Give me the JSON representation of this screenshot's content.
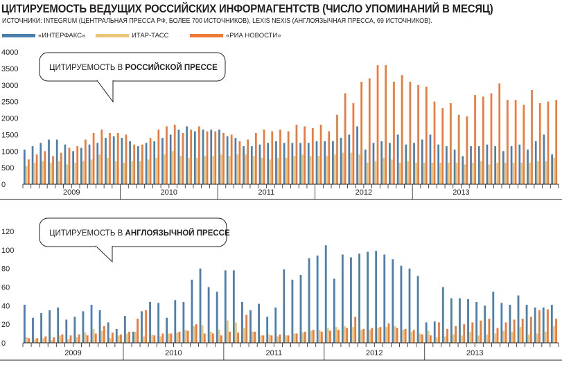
{
  "title": "ЦИТИРУЕМОСТЬ ВЕДУЩИХ РОССИЙСКИХ ИНФОРМАГЕНТСТВ (ЧИСЛО УПОМИНАНИЙ В МЕСЯЦ)",
  "subtitle": "ИСТОЧНИКИ: INTEGRUM (ЦЕНТРАЛЬНАЯ ПРЕССА РФ, БОЛЕЕ 700 ИСТОЧНИКОВ), LEXIS NEXIS (АНГЛОЯЗЫЧНАЯ ПРЕССА, 69 ИСТОЧНИКОВ).",
  "legend": [
    {
      "label": "«ИНТЕРФАКС»",
      "color": "#4a7fae"
    },
    {
      "label": "ИТАР-ТАСС",
      "color": "#e8c77a"
    },
    {
      "label": "«РИА НОВОСТИ»",
      "color": "#f0793a"
    }
  ],
  "chart_data": [
    {
      "type": "bar",
      "callout": {
        "prefix": "ЦИТИРУЕМОСТЬ В ",
        "bold": "РОССИЙСКОЙ ПРЕССЕ"
      },
      "ylim": [
        0,
        4000
      ],
      "yticks": [
        0,
        500,
        1000,
        1500,
        2000,
        2500,
        3000,
        3500,
        4000
      ],
      "year_labels": [
        "2009",
        "2010",
        "2011",
        "2012",
        "2013"
      ],
      "series": [
        {
          "name": "«ИНТЕРФАКС»",
          "color": "#4a7fae",
          "values": [
            1050,
            1150,
            1250,
            1350,
            1350,
            1200,
            1000,
            1100,
            1200,
            1250,
            1400,
            1450,
            1400,
            1300,
            1150,
            1250,
            1300,
            1400,
            1500,
            1650,
            1750,
            1600,
            1650,
            1650,
            1650,
            1450,
            1400,
            1150,
            1150,
            1200,
            1250,
            1300,
            1250,
            1250,
            1250,
            1250,
            1300,
            1300,
            1300,
            1400,
            1500,
            1750,
            1050,
            1250,
            1300,
            1250,
            1500,
            1200,
            1250,
            1350,
            1500,
            1200,
            1150,
            1050,
            850,
            1150,
            1150,
            1200,
            1150,
            1000,
            1150,
            1200,
            1050,
            1300,
            1500,
            900
          ]
        },
        {
          "name": "ИТАР-ТАСС",
          "color": "#e8c77a",
          "values": [
            550,
            650,
            700,
            650,
            700,
            600,
            650,
            700,
            750,
            900,
            800,
            700,
            650,
            700,
            700,
            750,
            800,
            900,
            1000,
            850,
            800,
            800,
            850,
            850,
            900,
            850,
            900,
            900,
            850,
            800,
            750,
            800,
            800,
            850,
            900,
            850,
            850,
            850,
            900,
            950,
            950,
            900,
            650,
            700,
            800,
            750,
            650,
            700,
            650,
            650,
            650,
            650,
            650,
            650,
            600,
            650,
            700,
            600,
            650,
            650,
            650,
            650,
            650,
            700,
            700,
            800
          ]
        },
        {
          "name": "«РИА НОВОСТИ»",
          "color": "#f0793a",
          "values": [
            750,
            900,
            1000,
            850,
            950,
            1100,
            1150,
            1350,
            1550,
            1650,
            1550,
            1550,
            1500,
            1200,
            1200,
            1400,
            1650,
            1750,
            1800,
            1550,
            1650,
            1750,
            1600,
            1600,
            1550,
            1500,
            1300,
            1350,
            1550,
            1650,
            1600,
            1650,
            1600,
            1800,
            1750,
            1700,
            1800,
            1600,
            2100,
            2750,
            2450,
            3100,
            3200,
            3600,
            3600,
            3100,
            3300,
            3100,
            3000,
            2950,
            2500,
            2300,
            2450,
            2100,
            2050,
            2700,
            2650,
            2750,
            3050,
            2550,
            2550,
            2400,
            2850,
            2450,
            2500,
            2550
          ]
        }
      ]
    },
    {
      "type": "bar",
      "callout": {
        "prefix": "ЦИТИРУЕМОСТЬ В ",
        "bold": "АНГЛОЯЗЫЧНОЙ ПРЕССЕ"
      },
      "ylim": [
        0,
        120
      ],
      "yticks": [
        0,
        20,
        40,
        60,
        80,
        100,
        120
      ],
      "year_labels": [
        "2009",
        "2010",
        "2011",
        "2012",
        "2013"
      ],
      "series": [
        {
          "name": "«ИНТЕРФАКС»",
          "color": "#4a7fae",
          "values": [
            41,
            27,
            32,
            35,
            38,
            25,
            28,
            34,
            41,
            35,
            22,
            15,
            29,
            12,
            34,
            44,
            43,
            27,
            46,
            44,
            68,
            80,
            60,
            55,
            78,
            78,
            44,
            35,
            42,
            28,
            38,
            79,
            68,
            73,
            91,
            94,
            105,
            69,
            95,
            92,
            96,
            98,
            99,
            95,
            90,
            83,
            80,
            72,
            22,
            23,
            60,
            48,
            48,
            47,
            44,
            40,
            55,
            43,
            41,
            51,
            41,
            38,
            38,
            41
          ]
        },
        {
          "name": "ИТАР-ТАСС",
          "color": "#e8c77a",
          "values": [
            6,
            4,
            5,
            3,
            8,
            4,
            6,
            11,
            15,
            13,
            5,
            8,
            10,
            12,
            7,
            9,
            7,
            10,
            11,
            14,
            18,
            19,
            12,
            14,
            24,
            22,
            16,
            12,
            8,
            9,
            7,
            8,
            10,
            11,
            13,
            14,
            16,
            17,
            18,
            17,
            14,
            14,
            16,
            17,
            18,
            14,
            12,
            10,
            13,
            6,
            7,
            9,
            8,
            12,
            8,
            9,
            10,
            13,
            12,
            17,
            9,
            10,
            12,
            18
          ]
        },
        {
          "name": "«РИА НОВОСТИ»",
          "color": "#f0793a",
          "values": [
            5,
            5,
            7,
            6,
            9,
            8,
            9,
            8,
            10,
            18,
            11,
            9,
            12,
            26,
            35,
            8,
            10,
            10,
            12,
            13,
            20,
            10,
            10,
            8,
            12,
            11,
            30,
            12,
            8,
            8,
            9,
            8,
            10,
            12,
            14,
            12,
            13,
            14,
            16,
            28,
            15,
            16,
            17,
            21,
            16,
            15,
            14,
            9,
            8,
            22,
            15,
            18,
            20,
            22,
            24,
            26,
            16,
            22,
            25,
            26,
            28,
            35,
            36,
            26
          ]
        }
      ]
    }
  ]
}
